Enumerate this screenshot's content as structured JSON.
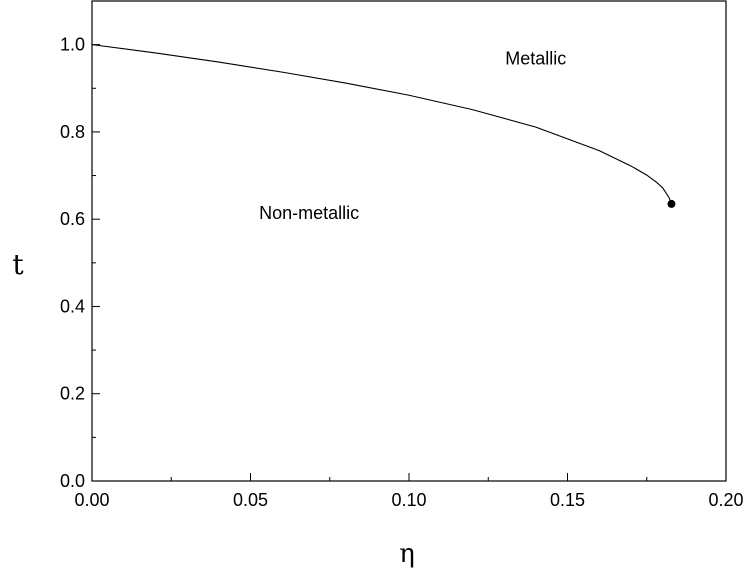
{
  "chart_data": {
    "type": "line",
    "xlabel": "η",
    "ylabel": "t",
    "xlim": [
      0.0,
      0.2
    ],
    "ylim": [
      0.0,
      1.1
    ],
    "x_ticks": [
      "0.00",
      "0.05",
      "0.10",
      "0.15",
      "0.20"
    ],
    "y_ticks": [
      "0.0",
      "0.2",
      "0.4",
      "0.6",
      "0.8",
      "1.0"
    ],
    "grid": false,
    "series": [
      {
        "x": [
          0.0,
          0.02,
          0.04,
          0.06,
          0.08,
          0.1,
          0.12,
          0.14,
          0.16,
          0.17,
          0.175,
          0.178,
          0.18,
          0.182,
          0.1828
        ],
        "y": [
          1.0,
          0.981,
          0.96,
          0.937,
          0.912,
          0.884,
          0.851,
          0.811,
          0.757,
          0.722,
          0.701,
          0.685,
          0.672,
          0.65,
          0.635
        ]
      }
    ],
    "endpoint": {
      "x": 0.1828,
      "y": 0.635
    },
    "annotations": [
      {
        "text": "Metallic",
        "x": 0.14,
        "y": 0.955
      },
      {
        "text": "Non-metallic",
        "x": 0.0685,
        "y": 0.6
      }
    ]
  }
}
